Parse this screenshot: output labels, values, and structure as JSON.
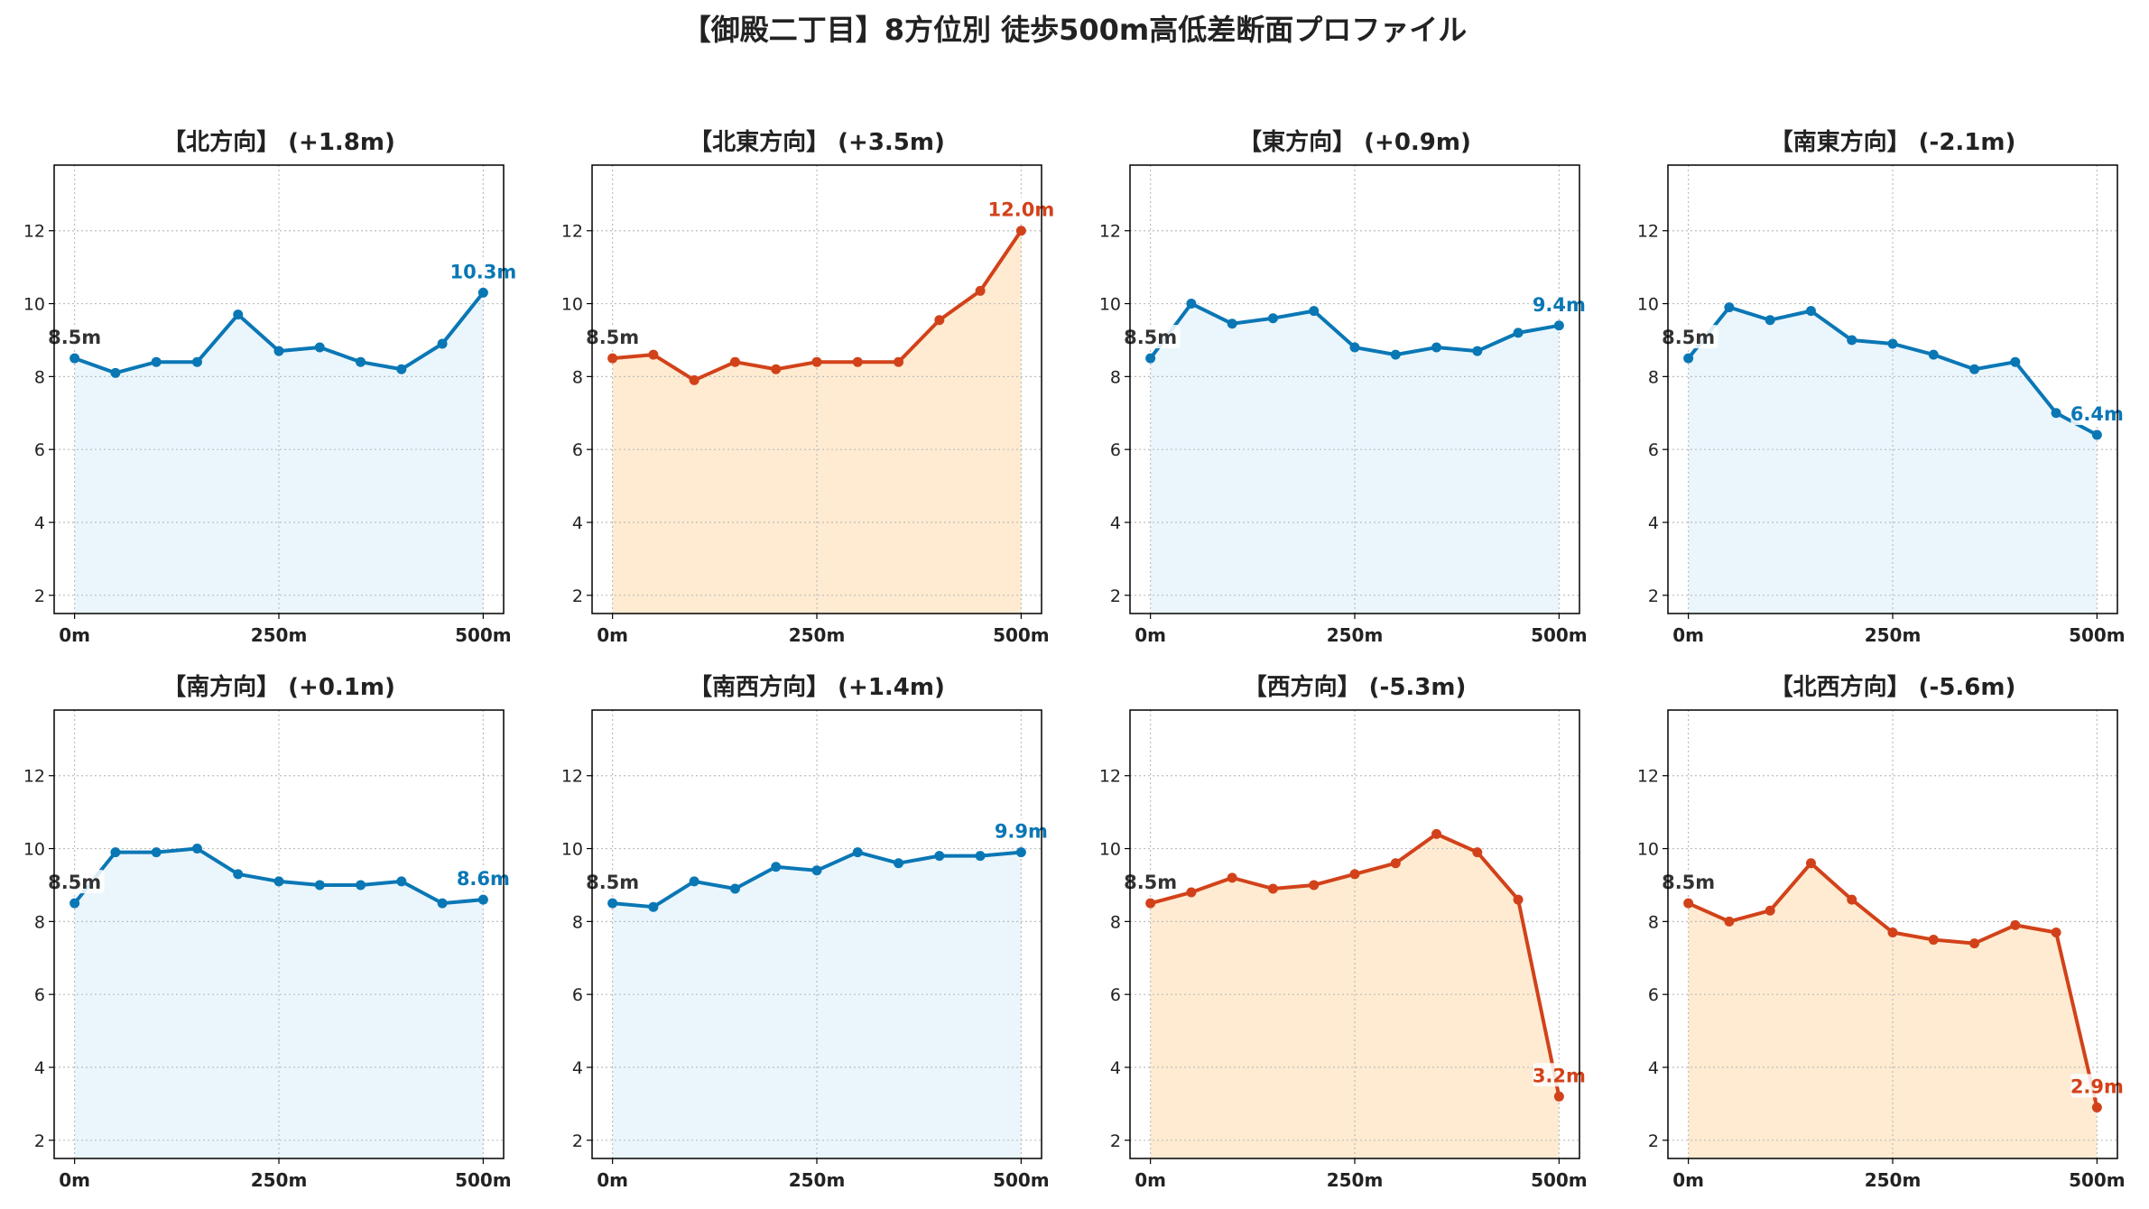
{
  "title": "【御殿二丁目】8方位別 徒歩500m高低差断面プロファイル",
  "colors": {
    "up_line": "#0a77b5",
    "up_fill": "#eaf6fc",
    "down_line": "#d2421a",
    "down_fill": "#feebd1",
    "grid": "#bdbdbd",
    "axis": "#000000"
  },
  "chart_data": [
    {
      "type": "area",
      "title": "【北方向】 (+1.8m)",
      "style": "blue",
      "x": [
        0,
        50,
        100,
        150,
        200,
        250,
        300,
        350,
        400,
        450,
        500
      ],
      "y": [
        8.5,
        8.1,
        8.4,
        8.4,
        9.7,
        8.7,
        8.8,
        8.4,
        8.2,
        8.9,
        10.3
      ],
      "start_label": "8.5m",
      "end_label": "10.3m",
      "xticks": [
        "0m",
        "250m",
        "500m"
      ],
      "yticks": [
        "2",
        "4",
        "6",
        "8",
        "10",
        "12"
      ],
      "ylim": [
        1.5,
        13.8
      ],
      "xlim": [
        -25,
        525
      ],
      "grid": true
    },
    {
      "type": "area",
      "title": "【北東方向】 (+3.5m)",
      "style": "orange",
      "x": [
        0,
        50,
        100,
        150,
        200,
        250,
        300,
        350,
        400,
        450,
        500
      ],
      "y": [
        8.5,
        8.6,
        7.9,
        8.4,
        8.2,
        8.4,
        8.4,
        8.4,
        9.55,
        10.35,
        12.0
      ],
      "start_label": "8.5m",
      "end_label": "12.0m",
      "xticks": [
        "0m",
        "250m",
        "500m"
      ],
      "yticks": [
        "2",
        "4",
        "6",
        "8",
        "10",
        "12"
      ],
      "ylim": [
        1.5,
        13.8
      ],
      "xlim": [
        -25,
        525
      ],
      "grid": true
    },
    {
      "type": "area",
      "title": "【東方向】 (+0.9m)",
      "style": "blue",
      "x": [
        0,
        50,
        100,
        150,
        200,
        250,
        300,
        350,
        400,
        450,
        500
      ],
      "y": [
        8.5,
        10.0,
        9.45,
        9.6,
        9.8,
        8.8,
        8.6,
        8.8,
        8.7,
        9.2,
        9.4
      ],
      "start_label": "8.5m",
      "end_label": "9.4m",
      "xticks": [
        "0m",
        "250m",
        "500m"
      ],
      "yticks": [
        "2",
        "4",
        "6",
        "8",
        "10",
        "12"
      ],
      "ylim": [
        1.5,
        13.8
      ],
      "xlim": [
        -25,
        525
      ],
      "grid": true
    },
    {
      "type": "area",
      "title": "【南東方向】 (-2.1m)",
      "style": "blue",
      "x": [
        0,
        50,
        100,
        150,
        200,
        250,
        300,
        350,
        400,
        450,
        500
      ],
      "y": [
        8.5,
        9.9,
        9.55,
        9.8,
        9.0,
        8.9,
        8.6,
        8.2,
        8.4,
        7.0,
        6.4
      ],
      "start_label": "8.5m",
      "end_label": "6.4m",
      "xticks": [
        "0m",
        "250m",
        "500m"
      ],
      "yticks": [
        "2",
        "4",
        "6",
        "8",
        "10",
        "12"
      ],
      "ylim": [
        1.5,
        13.8
      ],
      "xlim": [
        -25,
        525
      ],
      "grid": true
    },
    {
      "type": "area",
      "title": "【南方向】 (+0.1m)",
      "style": "blue",
      "x": [
        0,
        50,
        100,
        150,
        200,
        250,
        300,
        350,
        400,
        450,
        500
      ],
      "y": [
        8.5,
        9.9,
        9.9,
        10.0,
        9.3,
        9.1,
        9.0,
        9.0,
        9.1,
        8.5,
        8.6
      ],
      "start_label": "8.5m",
      "end_label": "8.6m",
      "xticks": [
        "0m",
        "250m",
        "500m"
      ],
      "yticks": [
        "2",
        "4",
        "6",
        "8",
        "10",
        "12"
      ],
      "ylim": [
        1.5,
        13.8
      ],
      "xlim": [
        -25,
        525
      ],
      "grid": true
    },
    {
      "type": "area",
      "title": "【南西方向】 (+1.4m)",
      "style": "blue",
      "x": [
        0,
        50,
        100,
        150,
        200,
        250,
        300,
        350,
        400,
        450,
        500
      ],
      "y": [
        8.5,
        8.4,
        9.1,
        8.9,
        9.5,
        9.4,
        9.9,
        9.6,
        9.8,
        9.8,
        9.9
      ],
      "start_label": "8.5m",
      "end_label": "9.9m",
      "xticks": [
        "0m",
        "250m",
        "500m"
      ],
      "yticks": [
        "2",
        "4",
        "6",
        "8",
        "10",
        "12"
      ],
      "ylim": [
        1.5,
        13.8
      ],
      "xlim": [
        -25,
        525
      ],
      "grid": true
    },
    {
      "type": "area",
      "title": "【西方向】 (-5.3m)",
      "style": "orange",
      "x": [
        0,
        50,
        100,
        150,
        200,
        250,
        300,
        350,
        400,
        450,
        500
      ],
      "y": [
        8.5,
        8.8,
        9.2,
        8.9,
        9.0,
        9.3,
        9.6,
        10.4,
        9.9,
        8.6,
        3.2
      ],
      "start_label": "8.5m",
      "end_label": "3.2m",
      "xticks": [
        "0m",
        "250m",
        "500m"
      ],
      "yticks": [
        "2",
        "4",
        "6",
        "8",
        "10",
        "12"
      ],
      "ylim": [
        1.5,
        13.8
      ],
      "xlim": [
        -25,
        525
      ],
      "grid": true
    },
    {
      "type": "area",
      "title": "【北西方向】 (-5.6m)",
      "style": "orange",
      "x": [
        0,
        50,
        100,
        150,
        200,
        250,
        300,
        350,
        400,
        450,
        500
      ],
      "y": [
        8.5,
        8.0,
        8.3,
        9.6,
        8.6,
        7.7,
        7.5,
        7.4,
        7.9,
        7.7,
        2.9
      ],
      "start_label": "8.5m",
      "end_label": "2.9m",
      "xticks": [
        "0m",
        "250m",
        "500m"
      ],
      "yticks": [
        "2",
        "4",
        "6",
        "8",
        "10",
        "12"
      ],
      "ylim": [
        1.5,
        13.8
      ],
      "xlim": [
        -25,
        525
      ],
      "grid": true
    }
  ]
}
